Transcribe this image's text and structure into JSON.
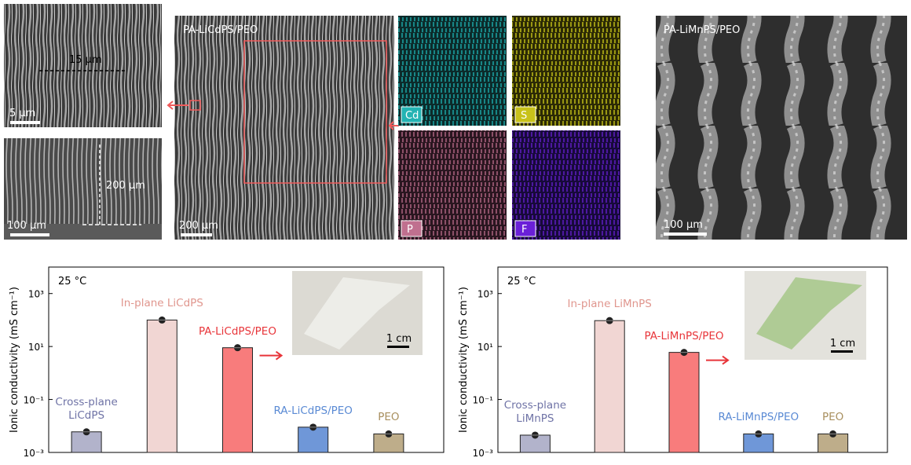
{
  "micrographs": {
    "surface": {
      "length": "15 μm",
      "scale": "5 μm"
    },
    "cross_section": {
      "thickness": "200 μm",
      "scale": "100 μm"
    },
    "main": {
      "title": "PA-LiCdPS/PEO",
      "scale": "200 μm"
    },
    "eds": [
      "Cd",
      "S",
      "P",
      "F"
    ],
    "right": {
      "title": "PA-LiMnPS/PEO",
      "scale": "100 μm"
    }
  },
  "chart_data": [
    {
      "type": "bar",
      "y_label": "Ionic conductivity (mS cm⁻¹)",
      "annotation": "25 °C",
      "inset_scale": "1 cm",
      "categories": [
        "Cross-plane LiCdPS",
        "In-plane LiCdPS",
        "PA-LiCdPS/PEO",
        "RA-LiCdPS/PEO",
        "PEO"
      ],
      "values": [
        0.006,
        100,
        9,
        0.009,
        0.005
      ],
      "colors": [
        "#b2b3cb",
        "#f1d6d3",
        "#f87c7c",
        "#6f97d8",
        "#bead8a"
      ],
      "label_colors": [
        "#6f73a6",
        "#e0968e",
        "#e8353a",
        "#5a8ad4",
        "#a88f5e"
      ],
      "log_scale": true,
      "ylim": [
        0.001,
        10000
      ],
      "yticks": [
        {
          "value": 0.001,
          "label": "10⁻³"
        },
        {
          "value": 0.1,
          "label": "10⁻¹"
        },
        {
          "value": 10,
          "label": "10¹"
        },
        {
          "value": 1000,
          "label": "10³"
        }
      ]
    },
    {
      "type": "bar",
      "y_label": "Ionic conductivity (mS cm⁻¹)",
      "annotation": "25 °C",
      "inset_scale": "1 cm",
      "categories": [
        "Cross-plane LiMnPS",
        "In-plane LiMnPS",
        "PA-LiMnPS/PEO",
        "RA-LiMnPS/PEO",
        "PEO"
      ],
      "values": [
        0.0045,
        95,
        6,
        0.005,
        0.005
      ],
      "colors": [
        "#b2b3cb",
        "#f1d6d3",
        "#f87c7c",
        "#6f97d8",
        "#bead8a"
      ],
      "label_colors": [
        "#6f73a6",
        "#e0968e",
        "#e8353a",
        "#5a8ad4",
        "#a88f5e"
      ],
      "log_scale": true,
      "ylim": [
        0.001,
        10000
      ],
      "yticks": [
        {
          "value": 0.001,
          "label": "10⁻³"
        },
        {
          "value": 0.1,
          "label": "10⁻¹"
        },
        {
          "value": 10,
          "label": "10¹"
        },
        {
          "value": 1000,
          "label": "10³"
        }
      ]
    }
  ]
}
